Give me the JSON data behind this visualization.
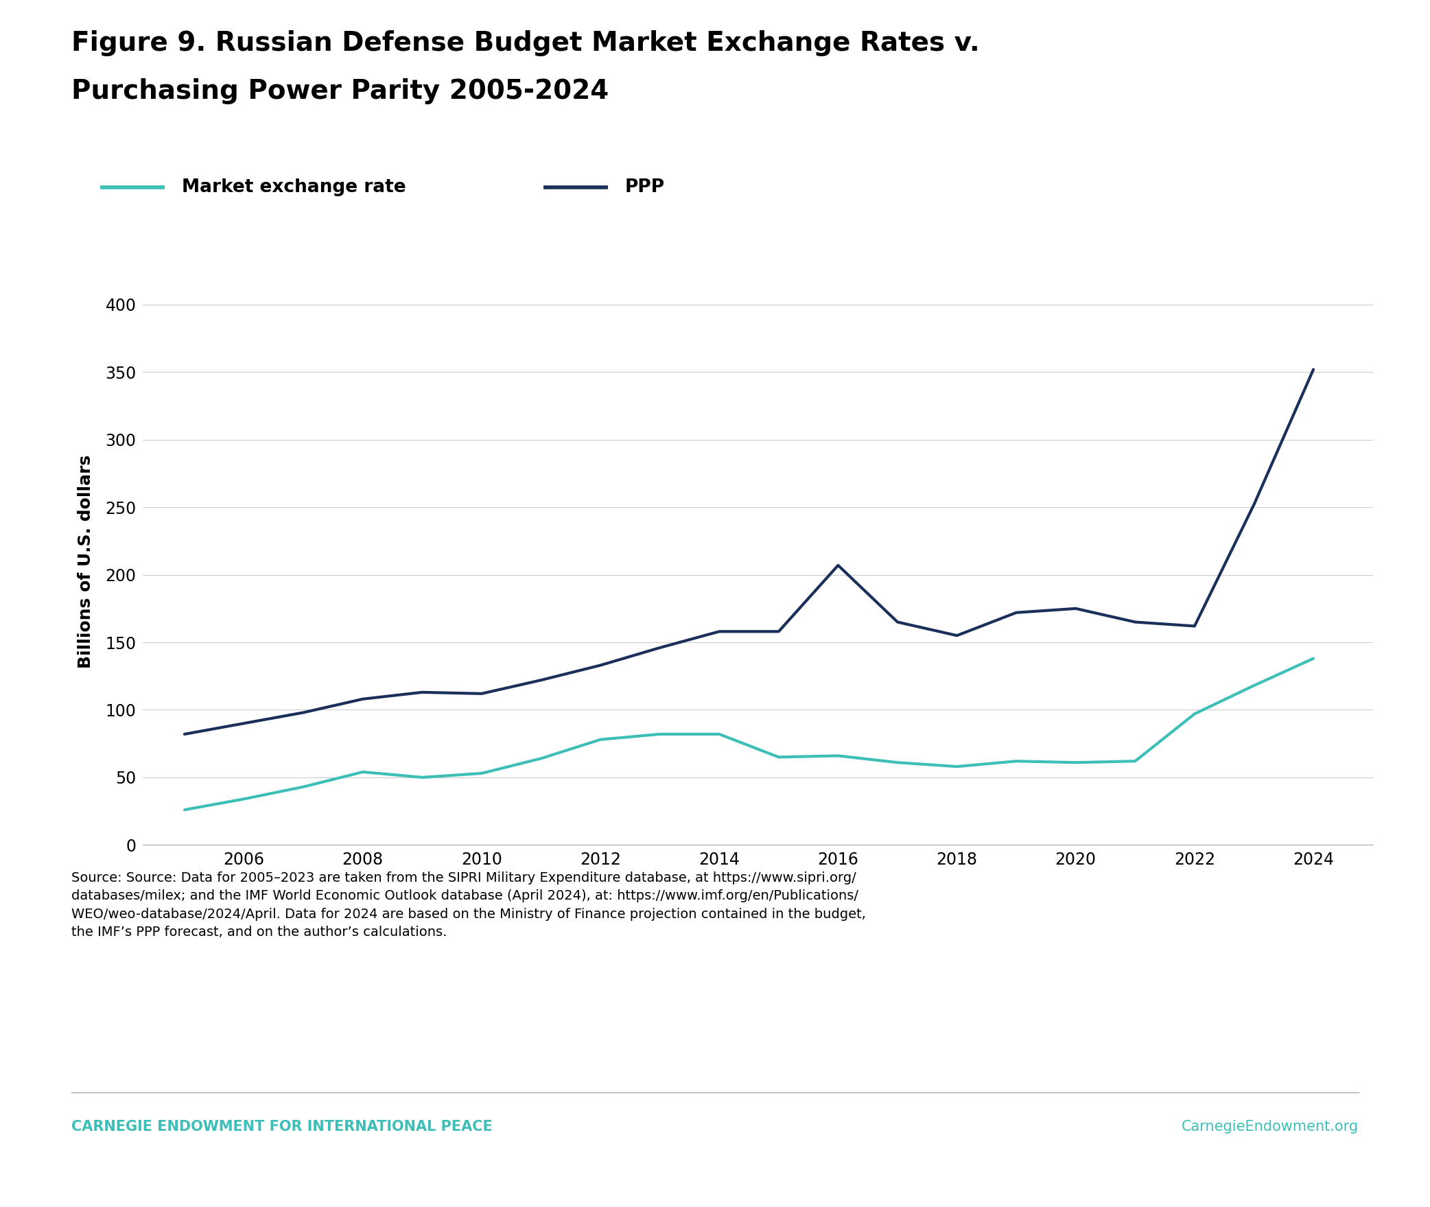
{
  "title_line1": "Figure 9. Russian Defense Budget Market Exchange Rates v.",
  "title_line2": "Purchasing Power Parity 2005-2024",
  "ylabel": "Billions of U.S. dollars",
  "years": [
    2005,
    2006,
    2007,
    2008,
    2009,
    2010,
    2011,
    2012,
    2013,
    2014,
    2015,
    2016,
    2017,
    2018,
    2019,
    2020,
    2021,
    2022,
    2023,
    2024
  ],
  "market_exchange_rate": [
    26,
    34,
    43,
    54,
    50,
    53,
    64,
    78,
    82,
    82,
    65,
    66,
    61,
    58,
    62,
    61,
    62,
    97,
    118,
    138
  ],
  "ppp": [
    82,
    90,
    98,
    108,
    113,
    112,
    122,
    133,
    146,
    158,
    158,
    207,
    165,
    155,
    172,
    175,
    165,
    162,
    252,
    352
  ],
  "market_color": "#3dbfb8",
  "ppp_color": "#1a2f5a",
  "ylim": [
    0,
    420
  ],
  "yticks": [
    0,
    50,
    100,
    150,
    200,
    250,
    300,
    350,
    400
  ],
  "grid_color": "#cccccc",
  "background_color": "#ffffff",
  "legend_market_label": "Market exchange rate",
  "legend_ppp_label": "PPP",
  "source_text": "Source: Source: Data for 2005–2023 are taken from the SIPRI Military Expenditure database, at https://www.sipri.org/\ndatabases/milex; and the IMF World Economic Outlook database (April 2024), at: https://www.imf.org/en/Publications/\nWEO/weo-database/2024/April. Data for 2024 are based on the Ministry of Finance projection contained in the budget,\nthe IMF’s PPP forecast, and on the author’s calculations.",
  "footer_left": "CARNEGIE ENDOWMENT FOR INTERNATIONAL PEACE",
  "footer_right": "CarnegieEndowment.org",
  "footer_color": "#3dbfb8",
  "line_width": 3.0
}
